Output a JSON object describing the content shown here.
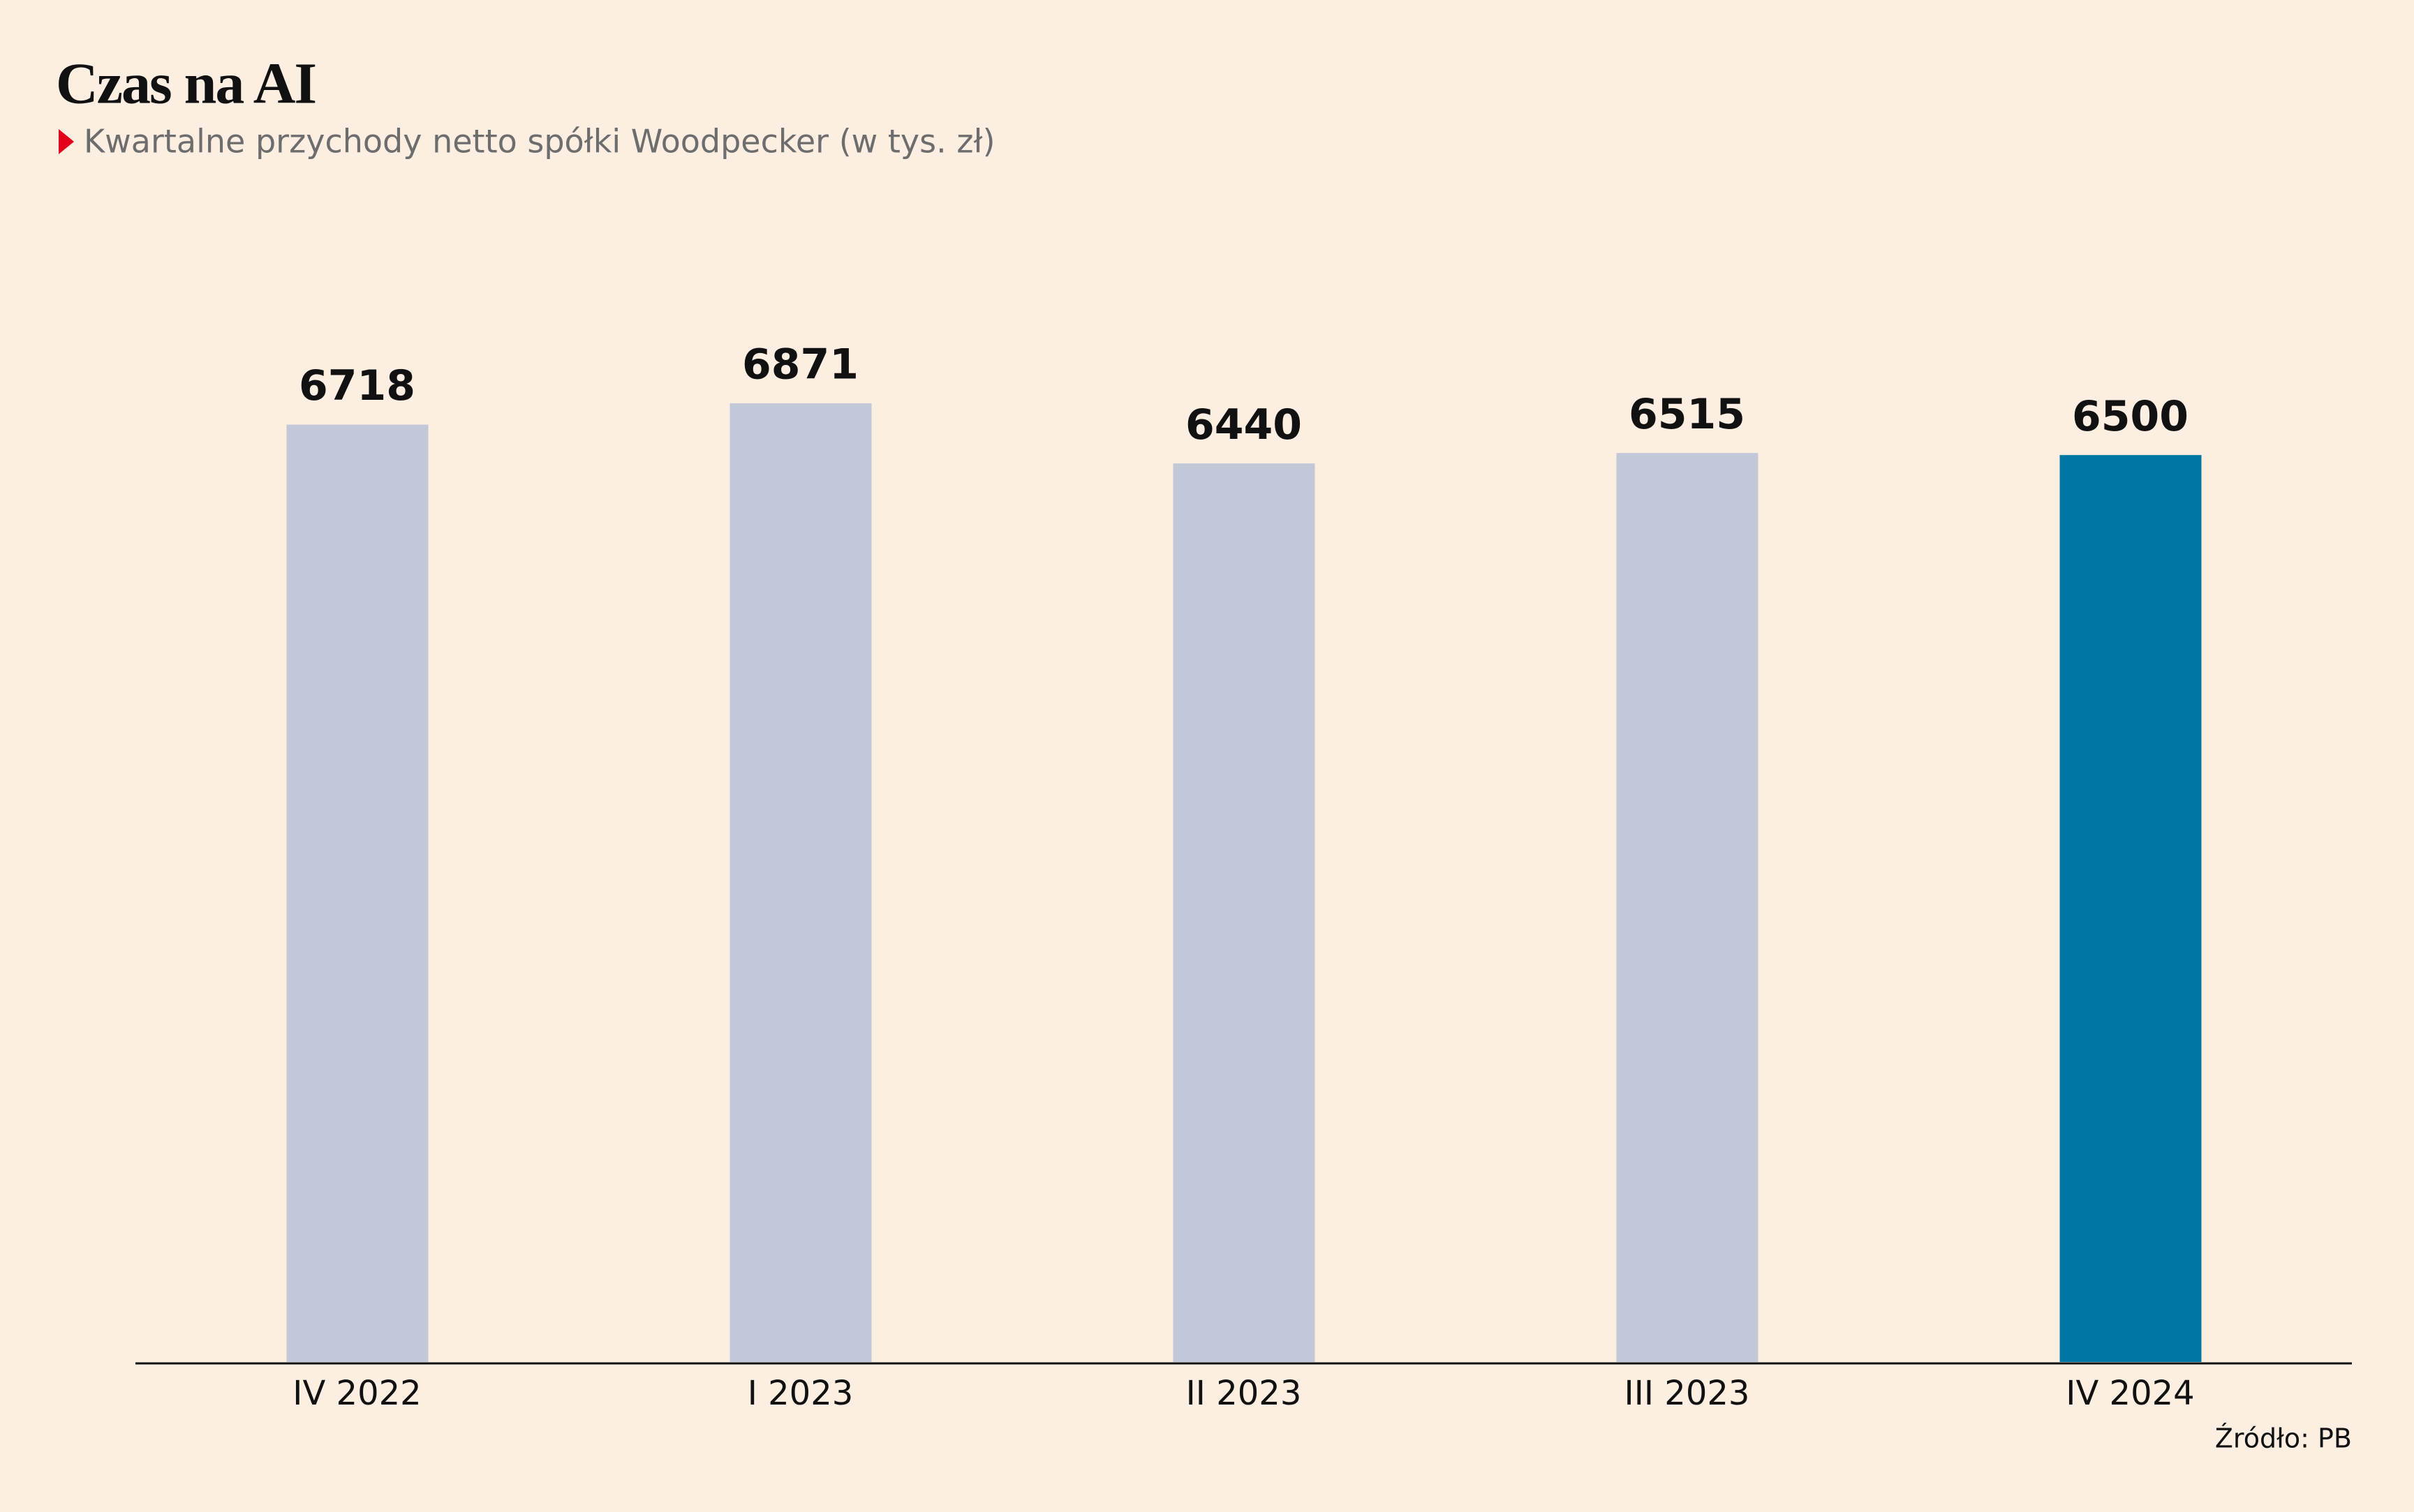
{
  "chart_data": {
    "type": "bar",
    "title": "Czas na AI",
    "subtitle": "Kwartalne przychody netto spółki Woodpecker (w tys. zł)",
    "categories": [
      "IV 2022",
      "I 2023",
      "II 2023",
      "III 2023",
      "IV 2024"
    ],
    "values": [
      6718,
      6871,
      6440,
      6515,
      6500
    ],
    "colors": [
      "#c2c8d8",
      "#c2c8d8",
      "#c2c8d8",
      "#c2c8d8",
      "#0077a3"
    ],
    "source": "Źródło: PB"
  }
}
